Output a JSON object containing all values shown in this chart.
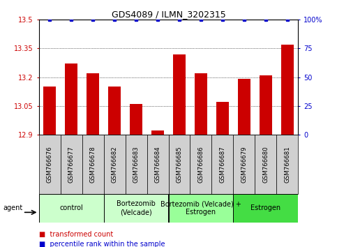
{
  "title": "GDS4089 / ILMN_3202315",
  "samples": [
    "GSM766676",
    "GSM766677",
    "GSM766678",
    "GSM766682",
    "GSM766683",
    "GSM766684",
    "GSM766685",
    "GSM766686",
    "GSM766687",
    "GSM766679",
    "GSM766680",
    "GSM766681"
  ],
  "transformed_counts": [
    13.15,
    13.27,
    13.22,
    13.15,
    13.06,
    12.92,
    13.32,
    13.22,
    13.07,
    13.19,
    13.21,
    13.37
  ],
  "percentile_ranks": [
    100,
    100,
    100,
    100,
    100,
    100,
    100,
    100,
    100,
    100,
    100,
    100
  ],
  "ylim_left": [
    12.9,
    13.5
  ],
  "ylim_right": [
    0,
    100
  ],
  "yticks_left": [
    12.9,
    13.05,
    13.2,
    13.35,
    13.5
  ],
  "yticks_right": [
    0,
    25,
    50,
    75,
    100
  ],
  "bar_color": "#cc0000",
  "dot_color": "#0000cc",
  "bar_width": 0.6,
  "baseline": 12.9,
  "groups": [
    {
      "label": "control",
      "start": 0,
      "end": 3,
      "color": "#ccffcc"
    },
    {
      "label": "Bortezomib\n(Velcade)",
      "start": 3,
      "end": 6,
      "color": "#ccffcc"
    },
    {
      "label": "Bortezomib (Velcade) +\nEstrogen",
      "start": 6,
      "end": 9,
      "color": "#99ff99"
    },
    {
      "label": "Estrogen",
      "start": 9,
      "end": 12,
      "color": "#44dd44"
    }
  ],
  "group_label_fontsize": 7.0,
  "sample_fontsize": 6.2,
  "title_fontsize": 9,
  "legend_fontsize": 7,
  "tick_fontsize": 7,
  "gray_cell_color": "#d0d0d0",
  "grid_color": "black",
  "grid_linewidth": 0.5
}
